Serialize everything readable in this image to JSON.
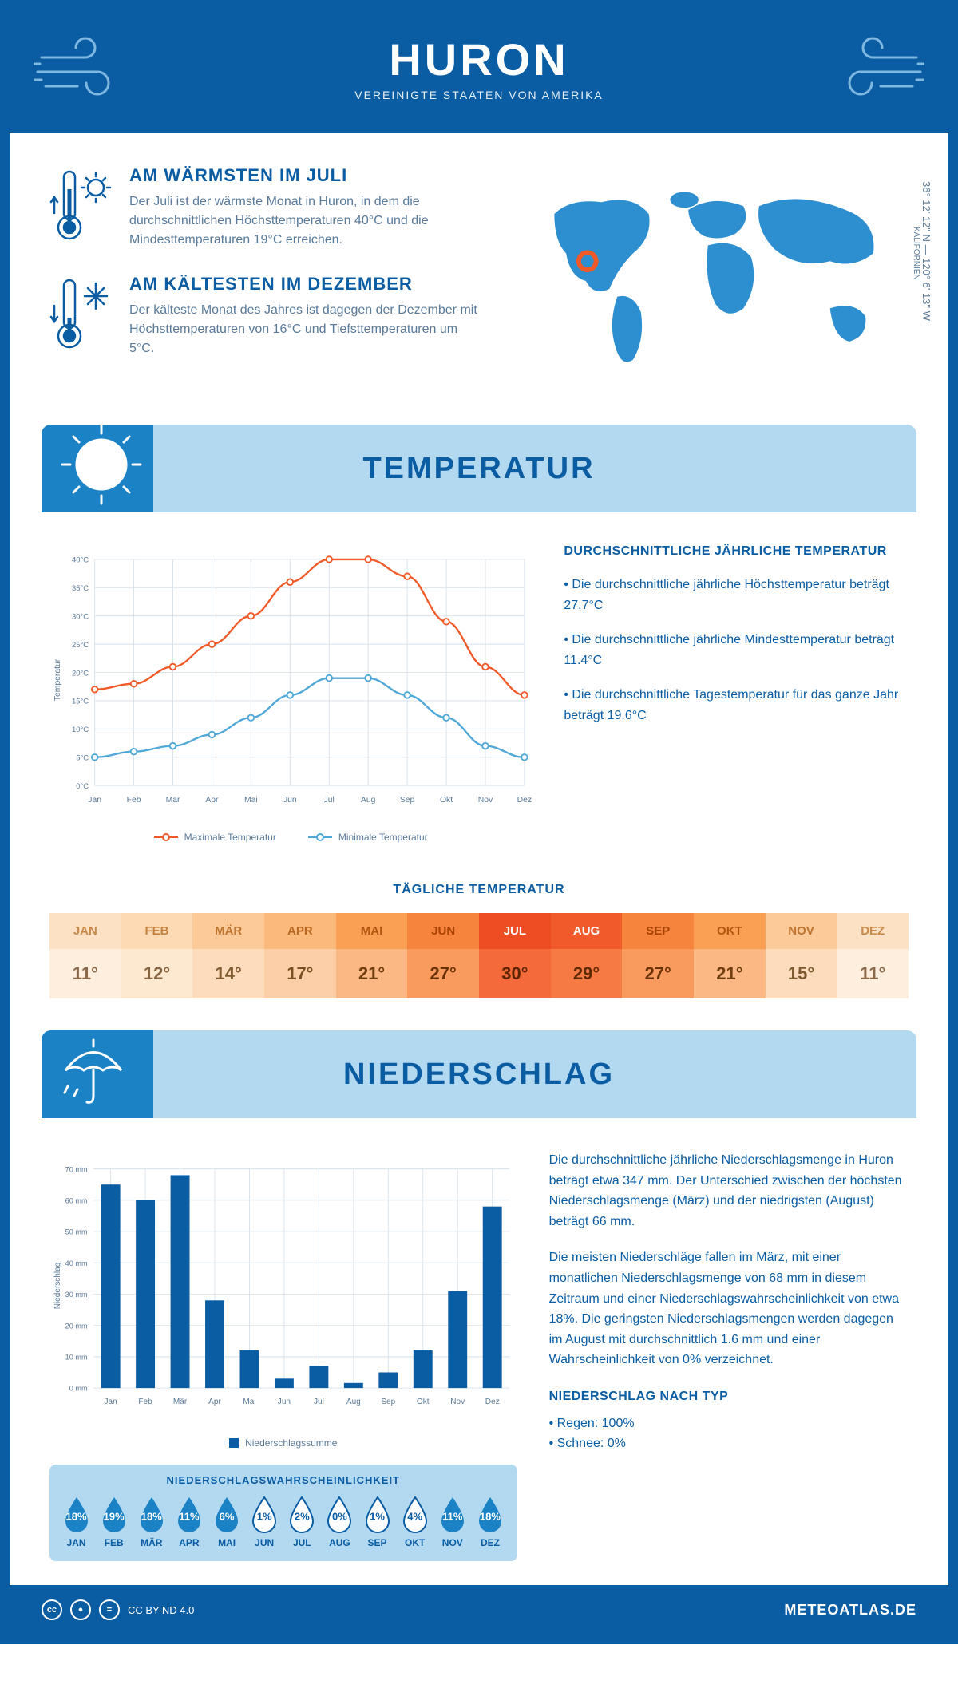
{
  "header": {
    "title": "HURON",
    "subtitle": "VEREINIGTE STAATEN VON AMERIKA"
  },
  "facts": {
    "warm": {
      "title": "AM WÄRMSTEN IM JULI",
      "text": "Der Juli ist der wärmste Monat in Huron, in dem die durchschnittlichen Höchsttemperaturen 40°C und die Mindesttemperaturen 19°C erreichen."
    },
    "cold": {
      "title": "AM KÄLTESTEN IM DEZEMBER",
      "text": "Der kälteste Monat des Jahres ist dagegen der Dezember mit Höchsttemperaturen von 16°C und Tiefsttemperaturen um 5°C."
    }
  },
  "coords": {
    "line": "36° 12' 12\" N — 120° 6' 13\" W",
    "state": "KALIFORNIEN"
  },
  "months": [
    "Jan",
    "Feb",
    "Mär",
    "Apr",
    "Mai",
    "Jun",
    "Jul",
    "Aug",
    "Sep",
    "Okt",
    "Nov",
    "Dez"
  ],
  "months_upper": [
    "JAN",
    "FEB",
    "MÄR",
    "APR",
    "MAI",
    "JUN",
    "JUL",
    "AUG",
    "SEP",
    "OKT",
    "NOV",
    "DEZ"
  ],
  "temp_section": {
    "title": "TEMPERATUR"
  },
  "temp_chart": {
    "type": "line",
    "ylabel": "Temperatur",
    "y_ticks": [
      0,
      5,
      10,
      15,
      20,
      25,
      30,
      35,
      40
    ],
    "y_tick_labels": [
      "0°C",
      "5°C",
      "10°C",
      "15°C",
      "20°C",
      "25°C",
      "30°C",
      "35°C",
      "40°C"
    ],
    "ylim": [
      0,
      40
    ],
    "max_series": {
      "label": "Maximale Temperatur",
      "color": "#f05a28",
      "values": [
        17,
        18,
        21,
        25,
        30,
        36,
        40,
        40,
        37,
        29,
        21,
        16
      ]
    },
    "min_series": {
      "label": "Minimale Temperatur",
      "color": "#4fa8d8",
      "values": [
        5,
        6,
        7,
        9,
        12,
        16,
        19,
        19,
        16,
        12,
        7,
        5
      ]
    },
    "grid_color": "#d8e2ea",
    "background": "#ffffff"
  },
  "temp_text": {
    "title": "DURCHSCHNITTLICHE JÄHRLICHE TEMPERATUR",
    "b1": "• Die durchschnittliche jährliche Höchsttemperatur beträgt 27.7°C",
    "b2": "• Die durchschnittliche jährliche Mindesttemperatur beträgt 11.4°C",
    "b3": "• Die durchschnittliche Tagestemperatur für das ganze Jahr beträgt 19.6°C"
  },
  "daily": {
    "title": "TÄGLICHE TEMPERATUR",
    "values": [
      "11°",
      "12°",
      "14°",
      "17°",
      "21°",
      "27°",
      "30°",
      "29°",
      "27°",
      "21°",
      "15°",
      "11°"
    ],
    "head_colors": [
      "#fde1c5",
      "#fdd9b4",
      "#fcc998",
      "#fbb97c",
      "#faa054",
      "#f7843c",
      "#ee4d23",
      "#f15a2a",
      "#f7843c",
      "#faa054",
      "#fcc998",
      "#fde1c5"
    ],
    "val_colors": [
      "#feeedd",
      "#fde8d0",
      "#fddcbd",
      "#fccfa8",
      "#fbb784",
      "#f99b5e",
      "#f56a3a",
      "#f67a44",
      "#f99b5e",
      "#fbb784",
      "#fddcbd",
      "#feeedd"
    ],
    "head_text_colors": [
      "#c98a4a",
      "#c5823f",
      "#bf7530",
      "#b96822",
      "#b15510",
      "#a84300",
      "#ffffff",
      "#ffffff",
      "#a84300",
      "#b15510",
      "#bf7530",
      "#c98a4a"
    ],
    "val_text_colors": [
      "#8a6a4a",
      "#86643f",
      "#805a30",
      "#7a5022",
      "#724010",
      "#693200",
      "#5c2400",
      "#612a00",
      "#693200",
      "#724010",
      "#805a30",
      "#8a6a4a"
    ]
  },
  "precip_section": {
    "title": "NIEDERSCHLAG"
  },
  "precip_chart": {
    "type": "bar",
    "ylabel": "Niederschlag",
    "y_ticks": [
      0,
      10,
      20,
      30,
      40,
      50,
      60,
      70
    ],
    "y_tick_labels": [
      "0 mm",
      "10 mm",
      "20 mm",
      "30 mm",
      "40 mm",
      "50 mm",
      "60 mm",
      "70 mm"
    ],
    "ylim": [
      0,
      70
    ],
    "values": [
      65,
      60,
      68,
      28,
      12,
      3,
      7,
      1.6,
      5,
      12,
      31,
      58
    ],
    "bar_color": "#0a5ca3",
    "grid_color": "#d8e2ea",
    "legend": "Niederschlagssumme"
  },
  "precip_text": {
    "p1": "Die durchschnittliche jährliche Niederschlagsmenge in Huron beträgt etwa 347 mm. Der Unterschied zwischen der höchsten Niederschlagsmenge (März) und der niedrigsten (August) beträgt 66 mm.",
    "p2": "Die meisten Niederschläge fallen im März, mit einer monatlichen Niederschlagsmenge von 68 mm in diesem Zeitraum und einer Niederschlagswahrscheinlichkeit von etwa 18%. Die geringsten Niederschlagsmengen werden dagegen im August mit durchschnittlich 1.6 mm und einer Wahrscheinlichkeit von 0% verzeichnet.",
    "type_title": "NIEDERSCHLAG NACH TYP",
    "type_1": "• Regen: 100%",
    "type_2": "• Schnee: 0%"
  },
  "prob": {
    "title": "NIEDERSCHLAGSWAHRSCHEINLICHKEIT",
    "values": [
      "18%",
      "19%",
      "18%",
      "11%",
      "6%",
      "1%",
      "2%",
      "0%",
      "1%",
      "4%",
      "11%",
      "18%"
    ],
    "filled": [
      true,
      true,
      true,
      true,
      true,
      false,
      false,
      false,
      false,
      false,
      true,
      true
    ],
    "color_filled": "#1b82c5",
    "color_empty": "#ffffff"
  },
  "footer": {
    "license": "CC BY-ND 4.0",
    "site": "METEOATLAS.DE"
  },
  "palette": {
    "primary": "#0a5ca3",
    "light": "#b3d9f0",
    "accent": "#1b82c5"
  }
}
